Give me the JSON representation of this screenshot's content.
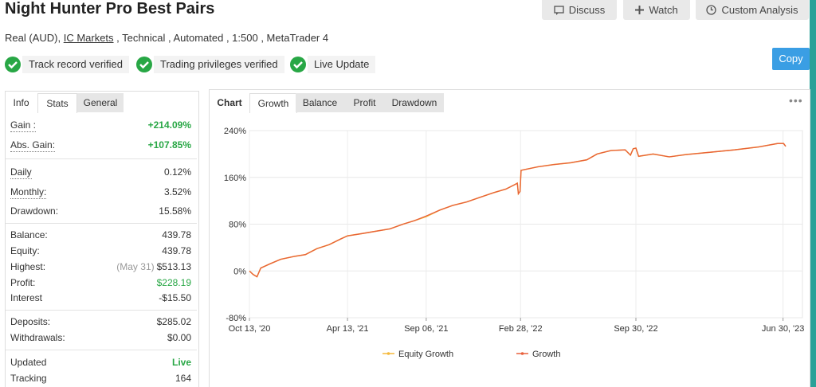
{
  "header": {
    "title": "Night Hunter Pro Best Pairs",
    "subtitle": [
      "Real (AUD),",
      "IC Markets",
      ", Technical , Automated , 1:500 , MetaTrader 4"
    ],
    "buttons": [
      "Discuss",
      "Watch",
      "Custom Analysis"
    ],
    "copy": "Copy",
    "badges": [
      "Track record verified",
      "Trading privileges verified",
      "Live Update"
    ]
  },
  "left_tabs": [
    "Info",
    "Stats",
    "General"
  ],
  "stats": [
    [
      {
        "label": "Gain :",
        "value": "+214.09%"
      },
      {
        "label": "Abs. Gain:",
        "value": "+107.85%"
      }
    ],
    [
      {
        "label": "Daily",
        "value": "0.12%"
      },
      {
        "label": "Monthly:",
        "value": "3.52%"
      },
      {
        "label": "Drawdown:",
        "value": "15.58%"
      }
    ],
    [
      {
        "label": "Balance:",
        "value": "439.78"
      },
      {
        "label": "Equity:",
        "value": "439.78"
      },
      {
        "label": "Highest:",
        "note": "(May 31)",
        "value": "$513.13"
      },
      {
        "label": "Profit:",
        "value": "$228.19"
      },
      {
        "label": "Interest",
        "value": "-$15.50"
      }
    ],
    [
      {
        "label": "Deposits:",
        "value": "$285.02"
      },
      {
        "label": "Withdrawals:",
        "value": "$0.00"
      }
    ],
    [
      {
        "label": "Updated",
        "value": "Live"
      },
      {
        "label": "Tracking",
        "value": "164"
      }
    ]
  ],
  "chart_tabs": [
    "Chart",
    "Growth",
    "Balance",
    "Profit",
    "Drawdown"
  ],
  "chart_data": {
    "type": "line",
    "x": [
      "2020-10-13",
      "2020-10-20",
      "2020-10-27",
      "2020-11-03",
      "2020-11-20",
      "2020-12-10",
      "2021-01-05",
      "2021-01-25",
      "2021-02-15",
      "2021-03-10",
      "2021-04-01",
      "2021-04-13",
      "2021-05-10",
      "2021-06-05",
      "2021-07-01",
      "2021-07-25",
      "2021-08-15",
      "2021-09-06",
      "2021-10-01",
      "2021-10-25",
      "2021-11-20",
      "2021-12-15",
      "2022-01-10",
      "2022-02-01",
      "2022-02-18",
      "2022-02-22",
      "2022-02-24",
      "2022-02-27",
      "2022-03-01",
      "2022-04-01",
      "2022-05-01",
      "2022-06-01",
      "2022-07-01",
      "2022-07-20",
      "2022-08-15",
      "2022-09-10",
      "2022-09-20",
      "2022-09-25",
      "2022-09-30",
      "2022-10-05",
      "2022-11-01",
      "2022-12-01",
      "2023-01-01",
      "2023-02-15",
      "2023-04-01",
      "2023-05-15",
      "2023-06-20",
      "2023-07-01",
      "2023-07-05"
    ],
    "series": [
      {
        "name": "Equity Growth",
        "color": "#f5b93a",
        "values": [
          0,
          -6,
          -10,
          5,
          12,
          20,
          25,
          28,
          38,
          45,
          55,
          60,
          64,
          68,
          72,
          80,
          86,
          93,
          104,
          112,
          118,
          126,
          134,
          140,
          148,
          150,
          132,
          136,
          172,
          178,
          182,
          185,
          190,
          200,
          206,
          207,
          198,
          209,
          210,
          196,
          200,
          195,
          199,
          203,
          207,
          212,
          218,
          218,
          213
        ]
      },
      {
        "name": "Growth",
        "color": "#e8603c",
        "values": [
          0,
          -6,
          -10,
          5,
          12,
          20,
          25,
          28,
          38,
          45,
          55,
          60,
          64,
          68,
          72,
          80,
          86,
          94,
          104,
          112,
          118,
          126,
          134,
          140,
          148,
          150,
          132,
          136,
          172,
          178,
          182,
          185,
          190,
          200,
          206,
          207,
          198,
          209,
          210,
          196,
          200,
          195,
          199,
          203,
          207,
          212,
          218,
          218,
          213
        ]
      }
    ],
    "xlim": [
      "2020-10-13",
      "2023-08-05"
    ],
    "xticks": [
      {
        "value": "2020-10-13",
        "label": "Oct 13, '20"
      },
      {
        "value": "2021-04-13",
        "label": "Apr 13, '21"
      },
      {
        "value": "2021-09-06",
        "label": "Sep 06, '21"
      },
      {
        "value": "2022-02-28",
        "label": "Feb 28, '22"
      },
      {
        "value": "2022-09-30",
        "label": "Sep 30, '22"
      },
      {
        "value": "2023-06-30",
        "label": "Jun 30, '23"
      }
    ],
    "ylim": [
      -80,
      240
    ],
    "yticks": [
      {
        "value": -80,
        "label": "-80%"
      },
      {
        "value": 0,
        "label": "0%"
      },
      {
        "value": 80,
        "label": "80%"
      },
      {
        "value": 160,
        "label": "160%"
      },
      {
        "value": 240,
        "label": "240%"
      }
    ],
    "grid": true,
    "legend": "bottom"
  }
}
